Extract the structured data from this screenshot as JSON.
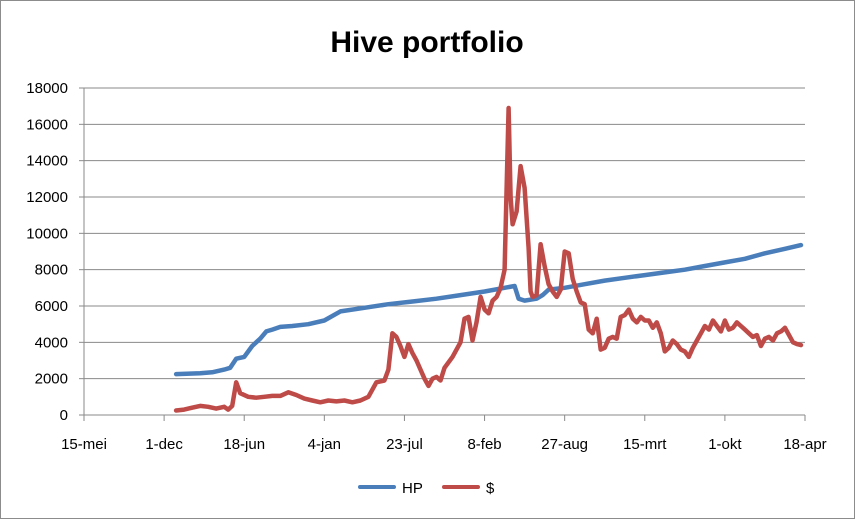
{
  "chart_data": {
    "type": "line",
    "title": "Hive portfolio",
    "xlabel": "",
    "ylabel": "",
    "ylim": [
      0,
      18000
    ],
    "yticks": [
      0,
      2000,
      4000,
      6000,
      8000,
      10000,
      12000,
      14000,
      16000,
      18000
    ],
    "x_tick_labels": [
      "15-mei",
      "1-dec",
      "18-jun",
      "4-jan",
      "23-jul",
      "8-feb",
      "27-aug",
      "15-mrt",
      "1-okt",
      "18-apr"
    ],
    "x_tick_spacing_days": 200,
    "xlim_days": [
      0,
      1800
    ],
    "grid": "horizontal",
    "legend_position": "bottom",
    "series": [
      {
        "name": "HP",
        "color": "#4a7ebb",
        "points": [
          [
            230,
            2250
          ],
          [
            290,
            2300
          ],
          [
            320,
            2350
          ],
          [
            350,
            2500
          ],
          [
            365,
            2600
          ],
          [
            380,
            3100
          ],
          [
            400,
            3200
          ],
          [
            420,
            3800
          ],
          [
            440,
            4200
          ],
          [
            455,
            4600
          ],
          [
            470,
            4700
          ],
          [
            490,
            4850
          ],
          [
            520,
            4900
          ],
          [
            560,
            5000
          ],
          [
            600,
            5200
          ],
          [
            640,
            5700
          ],
          [
            700,
            5900
          ],
          [
            760,
            6100
          ],
          [
            820,
            6250
          ],
          [
            880,
            6400
          ],
          [
            940,
            6600
          ],
          [
            1000,
            6800
          ],
          [
            1050,
            7000
          ],
          [
            1075,
            7100
          ],
          [
            1085,
            6400
          ],
          [
            1100,
            6300
          ],
          [
            1130,
            6400
          ],
          [
            1145,
            6600
          ],
          [
            1160,
            6900
          ],
          [
            1200,
            7000
          ],
          [
            1250,
            7200
          ],
          [
            1300,
            7400
          ],
          [
            1350,
            7550
          ],
          [
            1400,
            7700
          ],
          [
            1450,
            7850
          ],
          [
            1500,
            8000
          ],
          [
            1550,
            8200
          ],
          [
            1600,
            8400
          ],
          [
            1650,
            8600
          ],
          [
            1700,
            8900
          ],
          [
            1750,
            9150
          ],
          [
            1790,
            9350
          ]
        ]
      },
      {
        "name": "$",
        "color": "#be4b48",
        "points": [
          [
            230,
            250
          ],
          [
            250,
            300
          ],
          [
            270,
            400
          ],
          [
            290,
            500
          ],
          [
            310,
            450
          ],
          [
            330,
            350
          ],
          [
            350,
            450
          ],
          [
            360,
            300
          ],
          [
            370,
            500
          ],
          [
            380,
            1800
          ],
          [
            390,
            1200
          ],
          [
            410,
            1000
          ],
          [
            430,
            950
          ],
          [
            450,
            1000
          ],
          [
            470,
            1050
          ],
          [
            490,
            1050
          ],
          [
            510,
            1250
          ],
          [
            530,
            1100
          ],
          [
            550,
            900
          ],
          [
            570,
            800
          ],
          [
            590,
            700
          ],
          [
            610,
            800
          ],
          [
            630,
            750
          ],
          [
            650,
            800
          ],
          [
            670,
            700
          ],
          [
            690,
            800
          ],
          [
            710,
            1000
          ],
          [
            730,
            1800
          ],
          [
            750,
            1900
          ],
          [
            760,
            2500
          ],
          [
            770,
            4500
          ],
          [
            780,
            4300
          ],
          [
            790,
            3800
          ],
          [
            800,
            3200
          ],
          [
            810,
            3900
          ],
          [
            820,
            3400
          ],
          [
            830,
            3000
          ],
          [
            840,
            2500
          ],
          [
            850,
            2000
          ],
          [
            860,
            1600
          ],
          [
            870,
            2000
          ],
          [
            880,
            2100
          ],
          [
            890,
            1900
          ],
          [
            900,
            2600
          ],
          [
            920,
            3200
          ],
          [
            940,
            4000
          ],
          [
            950,
            5300
          ],
          [
            960,
            5400
          ],
          [
            970,
            4100
          ],
          [
            980,
            5100
          ],
          [
            990,
            6500
          ],
          [
            1000,
            5800
          ],
          [
            1010,
            5600
          ],
          [
            1020,
            6300
          ],
          [
            1030,
            6500
          ],
          [
            1040,
            7000
          ],
          [
            1050,
            8000
          ],
          [
            1060,
            16900
          ],
          [
            1065,
            12000
          ],
          [
            1070,
            10500
          ],
          [
            1080,
            11200
          ],
          [
            1090,
            13700
          ],
          [
            1100,
            12500
          ],
          [
            1110,
            9200
          ],
          [
            1115,
            6800
          ],
          [
            1120,
            6500
          ],
          [
            1130,
            6600
          ],
          [
            1140,
            9400
          ],
          [
            1150,
            8200
          ],
          [
            1160,
            7200
          ],
          [
            1170,
            6800
          ],
          [
            1180,
            6500
          ],
          [
            1190,
            6900
          ],
          [
            1200,
            9000
          ],
          [
            1210,
            8900
          ],
          [
            1220,
            7500
          ],
          [
            1230,
            6800
          ],
          [
            1240,
            6200
          ],
          [
            1250,
            6100
          ],
          [
            1260,
            4700
          ],
          [
            1270,
            4500
          ],
          [
            1280,
            5300
          ],
          [
            1290,
            3600
          ],
          [
            1300,
            3700
          ],
          [
            1310,
            4200
          ],
          [
            1320,
            4300
          ],
          [
            1330,
            4200
          ],
          [
            1340,
            5400
          ],
          [
            1350,
            5500
          ],
          [
            1360,
            5800
          ],
          [
            1370,
            5300
          ],
          [
            1380,
            5100
          ],
          [
            1390,
            5400
          ],
          [
            1400,
            5200
          ],
          [
            1410,
            5200
          ],
          [
            1420,
            4800
          ],
          [
            1430,
            5100
          ],
          [
            1440,
            4500
          ],
          [
            1450,
            3500
          ],
          [
            1460,
            3700
          ],
          [
            1470,
            4100
          ],
          [
            1480,
            3900
          ],
          [
            1490,
            3600
          ],
          [
            1500,
            3500
          ],
          [
            1510,
            3200
          ],
          [
            1520,
            3700
          ],
          [
            1530,
            4100
          ],
          [
            1540,
            4500
          ],
          [
            1550,
            4900
          ],
          [
            1560,
            4700
          ],
          [
            1570,
            5200
          ],
          [
            1580,
            4900
          ],
          [
            1590,
            4600
          ],
          [
            1600,
            5200
          ],
          [
            1610,
            4700
          ],
          [
            1620,
            4800
          ],
          [
            1630,
            5100
          ],
          [
            1640,
            4900
          ],
          [
            1650,
            4700
          ],
          [
            1660,
            4500
          ],
          [
            1670,
            4300
          ],
          [
            1680,
            4400
          ],
          [
            1690,
            3800
          ],
          [
            1700,
            4200
          ],
          [
            1710,
            4300
          ],
          [
            1720,
            4100
          ],
          [
            1730,
            4500
          ],
          [
            1740,
            4600
          ],
          [
            1750,
            4800
          ],
          [
            1760,
            4400
          ],
          [
            1770,
            4000
          ],
          [
            1780,
            3900
          ],
          [
            1790,
            3850
          ]
        ]
      }
    ]
  }
}
